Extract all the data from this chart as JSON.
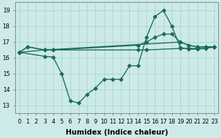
{
  "bg_color": "#cceae7",
  "grid_color": "#aad4d0",
  "line_color": "#1a6b5a",
  "line_width": 1.0,
  "marker": "D",
  "marker_size": 2.5,
  "xlabel": "Humidex (Indice chaleur)",
  "xlabel_fontsize": 7.5,
  "tick_fontsize": 6,
  "ylim": [
    12.5,
    19.5
  ],
  "xlim": [
    -0.5,
    23.5
  ],
  "yticks": [
    13,
    14,
    15,
    16,
    17,
    18,
    19
  ],
  "xticks": [
    0,
    1,
    2,
    3,
    4,
    5,
    6,
    7,
    8,
    9,
    10,
    11,
    12,
    13,
    14,
    15,
    16,
    17,
    18,
    19,
    20,
    21,
    22,
    23
  ],
  "line1_x": [
    0,
    1,
    3,
    19,
    20,
    21,
    22,
    23
  ],
  "line1_y": [
    16.35,
    16.7,
    16.5,
    17.0,
    16.8,
    16.7,
    16.7,
    16.7
  ],
  "line2_x": [
    0,
    3,
    4,
    14,
    15,
    19,
    20,
    21,
    22,
    23
  ],
  "line2_y": [
    16.35,
    16.5,
    16.5,
    16.5,
    16.5,
    16.6,
    16.6,
    16.6,
    16.6,
    16.7
  ],
  "line3_x": [
    0,
    3,
    4,
    5,
    6,
    7,
    8,
    9,
    10,
    11,
    12,
    13,
    14,
    15,
    16,
    17,
    18,
    19,
    20,
    21,
    22,
    23
  ],
  "line3_y": [
    16.35,
    16.1,
    16.05,
    15.0,
    13.3,
    13.15,
    13.7,
    14.1,
    14.65,
    14.65,
    14.65,
    15.5,
    15.5,
    17.3,
    18.6,
    19.0,
    18.0,
    16.65,
    16.55,
    16.55,
    16.6,
    16.7
  ],
  "line4_x": [
    0,
    1,
    3,
    4,
    14,
    15,
    16,
    17,
    18,
    19,
    20,
    21,
    22,
    23
  ],
  "line4_y": [
    16.35,
    16.7,
    16.5,
    16.5,
    16.8,
    17.0,
    17.3,
    17.5,
    17.5,
    17.0,
    16.8,
    16.7,
    16.7,
    16.7
  ]
}
